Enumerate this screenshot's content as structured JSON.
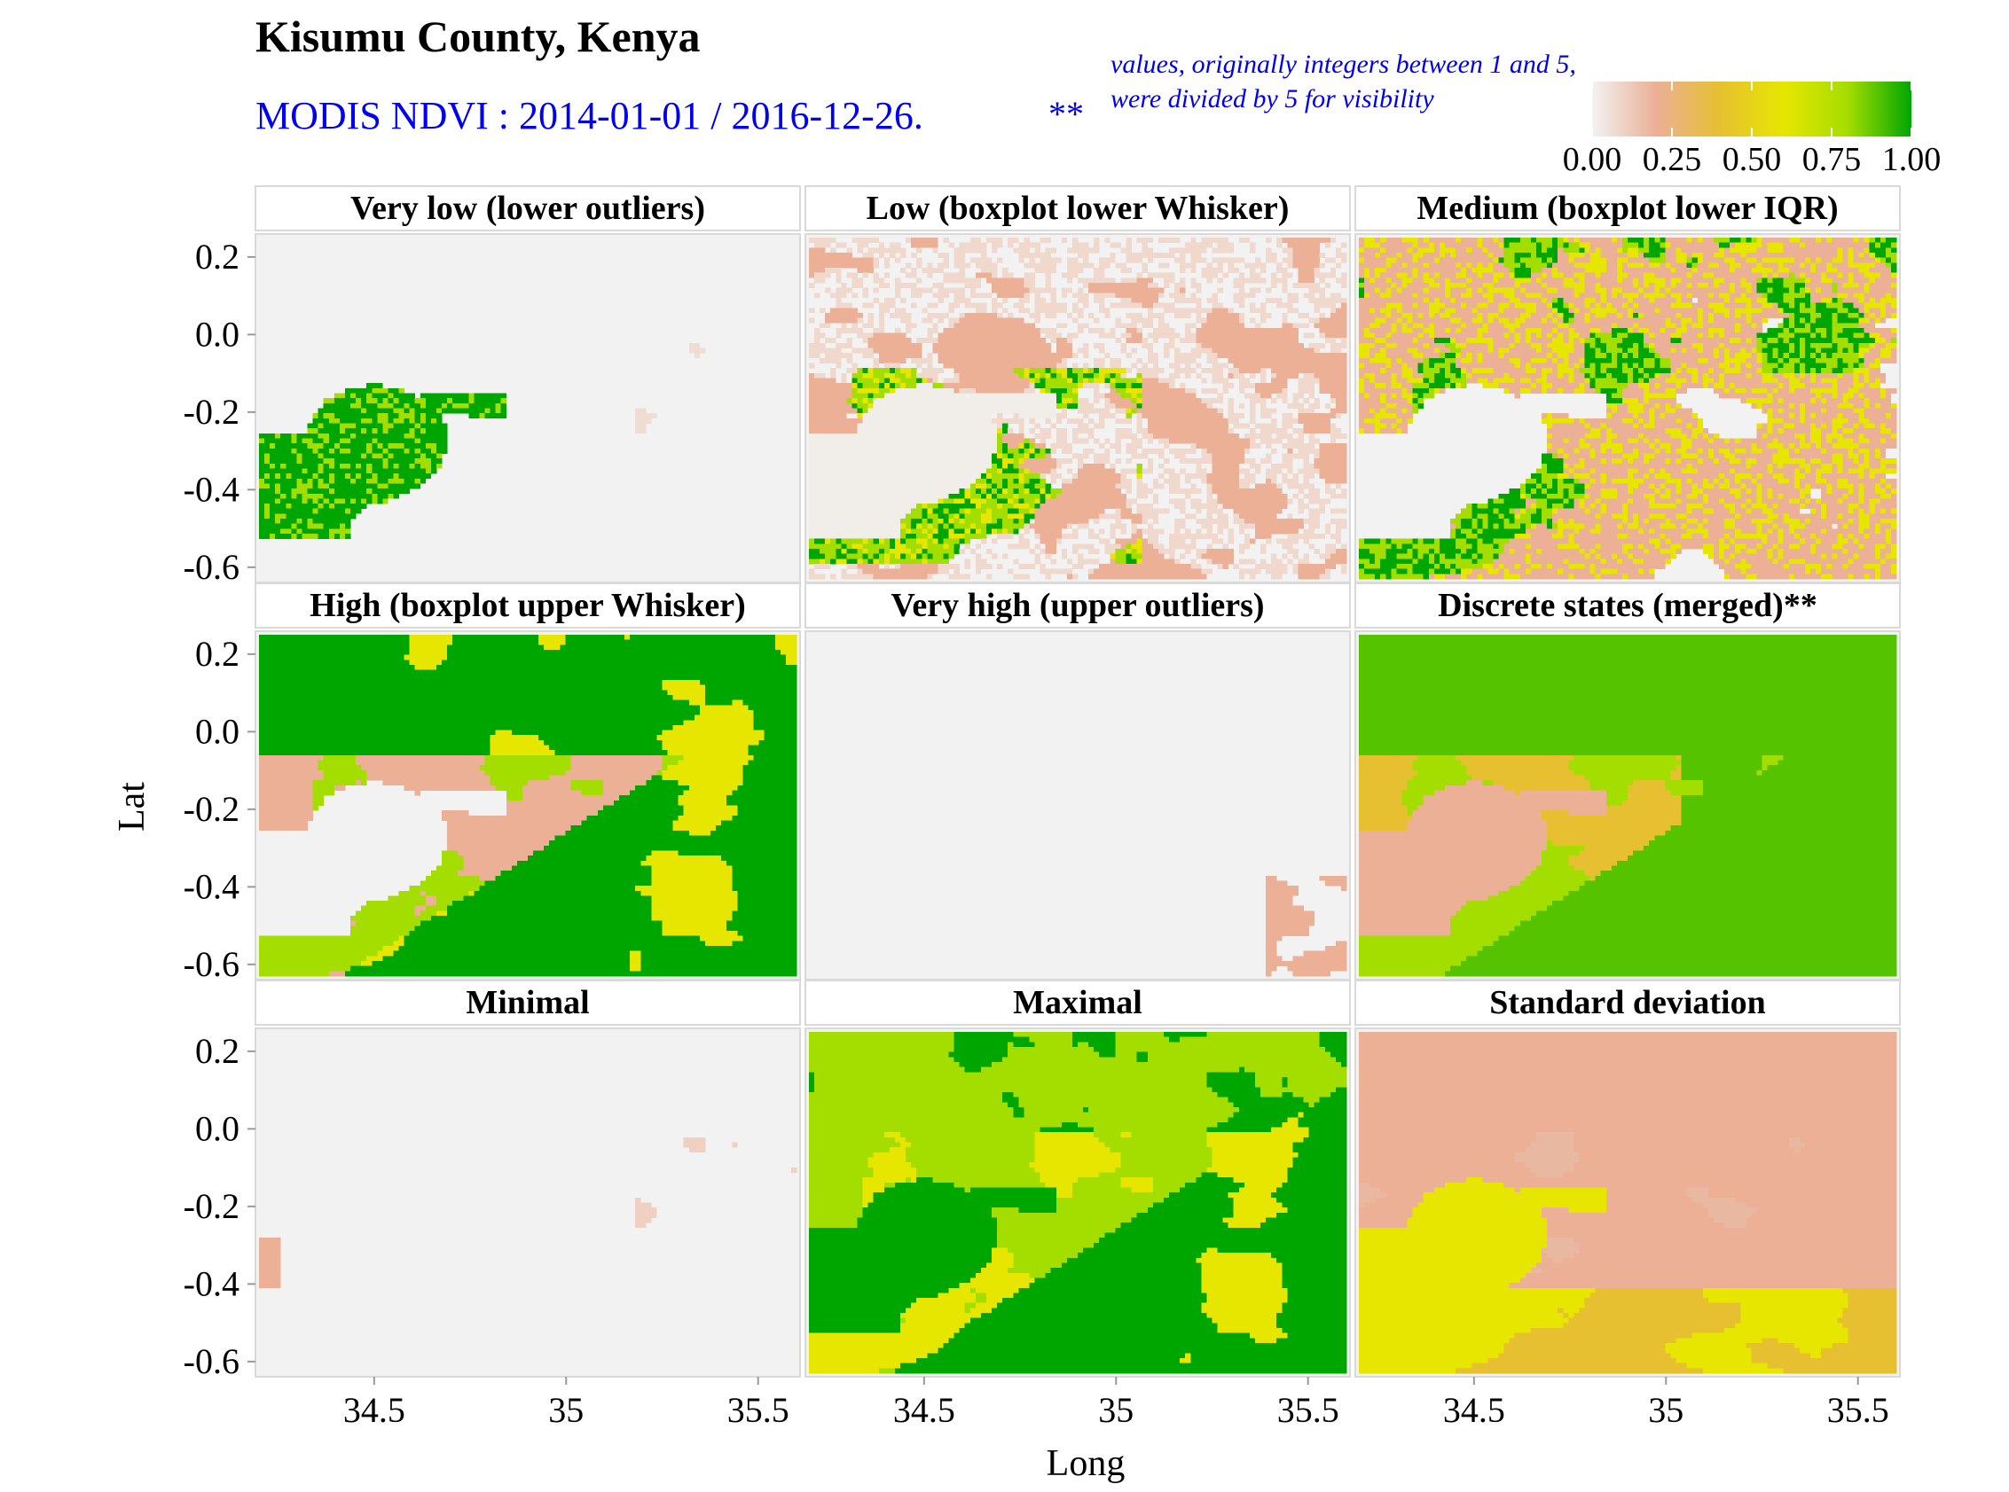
{
  "title": "Kisumu County, Kenya",
  "subtitle": "MODIS NDVI : 2014-01-01 / 2016-12-26.",
  "subtitle_marker": "**",
  "note_line1": "values, originally integers between 1 and 5,",
  "note_line2": "were divided by 5 for visibility",
  "colors": {
    "title": "#000000",
    "subtitle": "#0000ee",
    "scale": [
      "#f2f2f2",
      "#ebb096",
      "#e6c030",
      "#e6e600",
      "#a4dd00",
      "#00a600"
    ],
    "strip_bg": "#ffffff",
    "panel_border": "#d9d9d9"
  },
  "chart_data": {
    "type": "heatmap",
    "xlabel": "Long",
    "ylabel": "Lat",
    "xlim": [
      34.2,
      35.6
    ],
    "ylim": [
      -0.63,
      0.25
    ],
    "x_ticks": [
      "34.5",
      "35",
      "35.5"
    ],
    "x_tick_values": [
      34.5,
      35.0,
      35.5
    ],
    "y_ticks": [
      "0.2",
      "0.0",
      "-0.2",
      "-0.4",
      "-0.6"
    ],
    "y_tick_values": [
      0.2,
      0.0,
      -0.2,
      -0.4,
      -0.6
    ],
    "colorbar": {
      "ticks": [
        "0.00",
        "0.25",
        "0.50",
        "0.75",
        "1.00"
      ],
      "tick_values": [
        0,
        0.25,
        0.5,
        0.75,
        1.0
      ],
      "range": [
        0,
        1
      ]
    },
    "panels": [
      {
        "title": "Very low (lower outliers)",
        "pattern": "verylow"
      },
      {
        "title": "Low (boxplot lower Whisker)",
        "pattern": "low"
      },
      {
        "title": "Medium (boxplot lower IQR)",
        "pattern": "medium"
      },
      {
        "title": "High (boxplot upper Whisker)",
        "pattern": "high"
      },
      {
        "title": "Very high (upper outliers)",
        "pattern": "veryhigh"
      },
      {
        "title": "Discrete states (merged)**",
        "pattern": "discrete"
      },
      {
        "title": "Minimal",
        "pattern": "minimal"
      },
      {
        "title": "Maximal",
        "pattern": "maximal"
      },
      {
        "title": "Standard deviation",
        "pattern": "sd"
      }
    ]
  }
}
